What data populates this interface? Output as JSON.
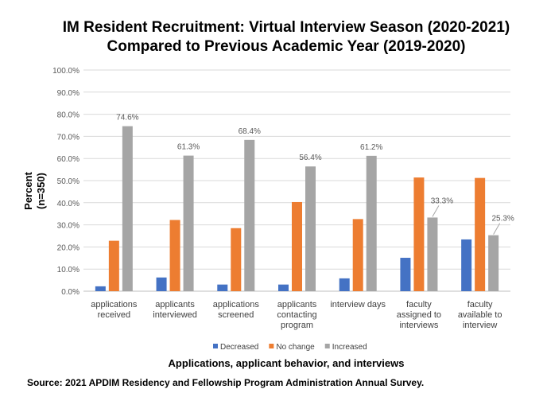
{
  "chart_data": {
    "type": "bar",
    "title": [
      "IM Resident Recruitment: Virtual Interview Season (2020-2021)",
      "Compared to Previous Academic Year (2019-2020)"
    ],
    "xlabel": "Applications, applicant behavior, and interviews",
    "ylabel": [
      "Percent",
      "(n=350)"
    ],
    "ylim": [
      0,
      100
    ],
    "yticks": [
      "0.0%",
      "10.0%",
      "20.0%",
      "30.0%",
      "40.0%",
      "50.0%",
      "60.0%",
      "70.0%",
      "80.0%",
      "90.0%",
      "100.0%"
    ],
    "grid": true,
    "legend_position": "bottom",
    "categories": [
      [
        "applications",
        "received"
      ],
      [
        "applicants",
        "interviewed"
      ],
      [
        "applications",
        "screened"
      ],
      [
        "applicants",
        "contacting",
        "program"
      ],
      [
        "interview days"
      ],
      [
        "faculty",
        "assigned to",
        "interviews"
      ],
      [
        "faculty",
        "available to",
        "interview"
      ]
    ],
    "series": [
      {
        "name": "Decreased",
        "color": "#4472C4",
        "values": [
          2.2,
          6.2,
          3.0,
          3.0,
          5.8,
          15.1,
          23.4
        ]
      },
      {
        "name": "No change",
        "color": "#ED7D31",
        "values": [
          22.8,
          32.2,
          28.5,
          40.3,
          32.6,
          51.4,
          51.2
        ]
      },
      {
        "name": "Increased",
        "color": "#A5A5A5",
        "values": [
          74.6,
          61.3,
          68.4,
          56.4,
          61.2,
          33.3,
          25.3
        ],
        "labels": [
          "74.6%",
          "61.3%",
          "68.4%",
          "56.4%",
          "61.2%",
          "33.3%",
          "25.3%"
        ]
      }
    ]
  },
  "source": "Source: 2021 APDIM Residency and Fellowship Program Administration Annual Survey."
}
